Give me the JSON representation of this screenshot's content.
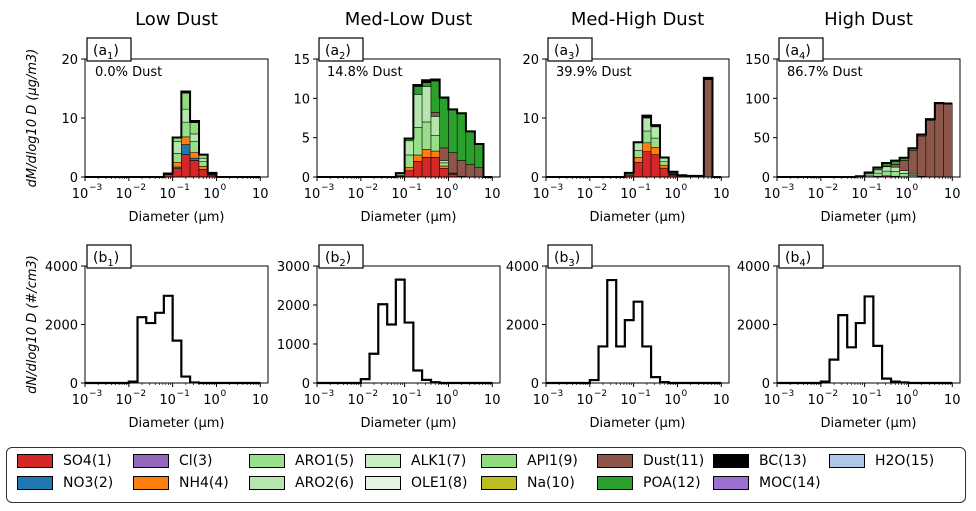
{
  "chart_data": [
    {
      "panel": "a1",
      "type": "stacked-histogram",
      "column_title": "Low Dust",
      "label": "(a",
      "sub": "1",
      "annotation": "0.0% Dust",
      "ylabel": "dM/dlog10 D (μg/m3)",
      "xlabel": "Diameter (μm)",
      "xscale": "log",
      "xlim": [
        0.001,
        15
      ],
      "ylim": [
        0,
        20
      ],
      "yticks": [
        "0",
        "10",
        "20"
      ],
      "bin_edges": [
        0.001,
        0.0016,
        0.0025,
        0.004,
        0.0063,
        0.01,
        0.0158,
        0.025,
        0.04,
        0.063,
        0.1,
        0.158,
        0.25,
        0.4,
        0.63,
        1.0,
        1.58,
        2.5,
        4.0,
        6.3,
        10.0
      ],
      "series": [
        {
          "name": "SO4(1)",
          "values": [
            0,
            0,
            0,
            0,
            0,
            0,
            0,
            0,
            0,
            0.4,
            1.4,
            3.8,
            2.8,
            1.3,
            0.3,
            0,
            0,
            0,
            0,
            0
          ]
        },
        {
          "name": "NO3(2)",
          "values": [
            0,
            0,
            0,
            0,
            0,
            0,
            0,
            0,
            0,
            0,
            0.3,
            1.7,
            0.4,
            0,
            0,
            0,
            0,
            0,
            0,
            0
          ]
        },
        {
          "name": "NH4(4)",
          "values": [
            0,
            0,
            0,
            0,
            0,
            0,
            0,
            0,
            0,
            0.2,
            0.8,
            1.3,
            1.0,
            0.5,
            0.1,
            0,
            0,
            0,
            0,
            0
          ]
        },
        {
          "name": "ARO1(5)",
          "values": [
            0,
            0,
            0,
            0,
            0,
            0,
            0,
            0,
            0,
            0,
            1.5,
            2.5,
            1.8,
            0.8,
            0.1,
            0,
            0,
            0,
            0,
            0
          ]
        },
        {
          "name": "ARO2(6)",
          "values": [
            0,
            0,
            0,
            0,
            0,
            0,
            0,
            0,
            0,
            0,
            2.0,
            2.2,
            1.3,
            0.5,
            0.1,
            0,
            0,
            0,
            0,
            0
          ]
        },
        {
          "name": "API1(9)",
          "values": [
            0,
            0,
            0,
            0,
            0,
            0,
            0,
            0,
            0,
            0,
            0.6,
            2.7,
            1.9,
            0.6,
            0.1,
            0,
            0,
            0,
            0,
            0
          ]
        },
        {
          "name": "BC(13)",
          "values": [
            0,
            0,
            0,
            0,
            0,
            0,
            0,
            0,
            0,
            0,
            0.1,
            0.3,
            0.3,
            0.1,
            0,
            0,
            0,
            0,
            0,
            0
          ]
        }
      ]
    },
    {
      "panel": "a2",
      "type": "stacked-histogram",
      "column_title": "Med-Low Dust",
      "label": "(a",
      "sub": "2",
      "annotation": "14.8% Dust",
      "ylabel": "",
      "xlabel": "Diameter (μm)",
      "xscale": "log",
      "xlim": [
        0.001,
        15
      ],
      "ylim": [
        0,
        15
      ],
      "yticks": [
        "0",
        "5",
        "10",
        "15"
      ],
      "bin_edges": [
        0.001,
        0.0016,
        0.0025,
        0.004,
        0.0063,
        0.01,
        0.0158,
        0.025,
        0.04,
        0.063,
        0.1,
        0.158,
        0.25,
        0.4,
        0.63,
        1.0,
        1.58,
        2.5,
        4.0,
        6.3,
        10.0
      ],
      "series": [
        {
          "name": "SO4(1)",
          "values": [
            0,
            0,
            0,
            0,
            0,
            0,
            0,
            0,
            0,
            0.1,
            0.8,
            2.0,
            2.5,
            2.5,
            1.1,
            0.3,
            0.1,
            0,
            0,
            0
          ]
        },
        {
          "name": "NH4(4)",
          "values": [
            0,
            0,
            0,
            0,
            0,
            0,
            0,
            0,
            0,
            0.1,
            0.4,
            0.8,
            1.0,
            0.8,
            0.3,
            0.1,
            0,
            0,
            0,
            0
          ]
        },
        {
          "name": "ARO1(5)",
          "values": [
            0,
            0,
            0,
            0,
            0,
            0,
            0,
            0,
            0,
            0.2,
            1.6,
            3.5,
            3.5,
            2.0,
            0.4,
            0.1,
            0,
            0,
            0,
            0
          ]
        },
        {
          "name": "ARO2(6)",
          "values": [
            0,
            0,
            0,
            0,
            0,
            0,
            0,
            0,
            0,
            0.1,
            1.8,
            4.2,
            4.5,
            2.4,
            0.3,
            0,
            0,
            0,
            0,
            0
          ]
        },
        {
          "name": "Dust(11)",
          "values": [
            0,
            0,
            0,
            0,
            0,
            0,
            0,
            0,
            0,
            0,
            0,
            0,
            0,
            0.5,
            1.6,
            2.6,
            2.0,
            1.6,
            1.2,
            0
          ]
        },
        {
          "name": "POA(12)",
          "values": [
            0,
            0,
            0,
            0,
            0,
            0,
            0,
            0,
            0,
            0,
            0.2,
            1.0,
            0.5,
            4.0,
            6.3,
            5.5,
            6.0,
            4.2,
            3.0,
            0
          ]
        },
        {
          "name": "BC(13)",
          "values": [
            0,
            0,
            0,
            0,
            0,
            0,
            0,
            0,
            0,
            0,
            0.1,
            0.2,
            0.3,
            0.2,
            0.1,
            0,
            0,
            0,
            0,
            0
          ]
        }
      ]
    },
    {
      "panel": "a3",
      "type": "stacked-histogram",
      "column_title": "Med-High Dust",
      "label": "(a",
      "sub": "3",
      "annotation": "39.9% Dust",
      "ylabel": "",
      "xlabel": "Diameter (μm)",
      "xscale": "log",
      "xlim": [
        0.001,
        15
      ],
      "ylim": [
        0,
        20
      ],
      "yticks": [
        "0",
        "10",
        "20"
      ],
      "bin_edges": [
        0.001,
        0.0016,
        0.0025,
        0.004,
        0.0063,
        0.01,
        0.0158,
        0.025,
        0.04,
        0.063,
        0.1,
        0.158,
        0.25,
        0.4,
        0.63,
        1.0,
        1.58,
        2.5,
        4.0,
        6.3,
        10.0
      ],
      "series": [
        {
          "name": "SO4(1)",
          "values": [
            0,
            0,
            0,
            0,
            0,
            0,
            0,
            0,
            0,
            0.3,
            2.5,
            4.3,
            3.8,
            1.5,
            0.3,
            0,
            0,
            0,
            0,
            0
          ]
        },
        {
          "name": "NH4(4)",
          "values": [
            0,
            0,
            0,
            0,
            0,
            0,
            0,
            0,
            0,
            0.1,
            0.8,
            1.5,
            1.2,
            0.5,
            0.1,
            0,
            0,
            0,
            0,
            0
          ]
        },
        {
          "name": "ARO1(5)",
          "values": [
            0,
            0,
            0,
            0,
            0,
            0,
            0,
            0,
            0,
            0.2,
            1.2,
            2.0,
            1.6,
            0.6,
            0.1,
            0,
            0,
            0,
            0,
            0
          ]
        },
        {
          "name": "ARO2(6)",
          "values": [
            0,
            0,
            0,
            0,
            0,
            0,
            0,
            0,
            0,
            0.1,
            1.3,
            2.2,
            1.9,
            0.6,
            0.1,
            0,
            0,
            0,
            0,
            0
          ]
        },
        {
          "name": "Dust(11)",
          "values": [
            0,
            0,
            0,
            0,
            0,
            0,
            0,
            0,
            0,
            0,
            0,
            0,
            0,
            0,
            0.2,
            0.2,
            0.2,
            0.2,
            16.5,
            0
          ]
        },
        {
          "name": "POA(12)",
          "values": [
            0,
            0,
            0,
            0,
            0,
            0,
            0,
            0,
            0,
            0,
            0,
            0,
            0,
            0,
            0.1,
            0.1,
            0,
            0,
            0,
            0
          ]
        },
        {
          "name": "BC(13)",
          "values": [
            0,
            0,
            0,
            0,
            0,
            0,
            0,
            0,
            0,
            0,
            0.1,
            0.4,
            0.3,
            0.1,
            0,
            0,
            0,
            0,
            0.3,
            0
          ]
        }
      ]
    },
    {
      "panel": "a4",
      "type": "stacked-histogram",
      "column_title": "High Dust",
      "label": "(a",
      "sub": "4",
      "annotation": "86.7% Dust",
      "ylabel": "",
      "xlabel": "Diameter (μm)",
      "xscale": "log",
      "xlim": [
        0.001,
        15
      ],
      "ylim": [
        0,
        150
      ],
      "yticks": [
        "0",
        "50",
        "100",
        "150"
      ],
      "bin_edges": [
        0.001,
        0.0016,
        0.0025,
        0.004,
        0.0063,
        0.01,
        0.0158,
        0.025,
        0.04,
        0.063,
        0.1,
        0.158,
        0.25,
        0.4,
        0.63,
        1.0,
        1.58,
        2.5,
        4.0,
        6.3,
        10.0
      ],
      "series": [
        {
          "name": "SO4(1)",
          "values": [
            0,
            0,
            0,
            0,
            0,
            0,
            0,
            0,
            0,
            0,
            0.5,
            1.0,
            1.5,
            1.0,
            0.5,
            0.2,
            0,
            0,
            0,
            0
          ]
        },
        {
          "name": "ARO1(5)",
          "values": [
            0,
            0,
            0,
            0,
            0,
            0,
            0,
            0,
            0,
            0.5,
            2.0,
            4.0,
            6.0,
            6.0,
            4.0,
            2.0,
            0.5,
            0,
            0,
            0
          ]
        },
        {
          "name": "ARO2(6)",
          "values": [
            0,
            0,
            0,
            0,
            0,
            0,
            0,
            0,
            0,
            0.5,
            2.0,
            4.0,
            5.5,
            5.5,
            3.5,
            1.5,
            0.5,
            0,
            0,
            0
          ]
        },
        {
          "name": "Dust(11)",
          "values": [
            0,
            0,
            0,
            0,
            0,
            0,
            0,
            0,
            0,
            0,
            0,
            0,
            1.0,
            3.5,
            13.0,
            30.0,
            51.0,
            72.0,
            93.0,
            93.0
          ]
        },
        {
          "name": "POA(12)",
          "values": [
            0,
            0,
            0,
            0,
            0,
            0,
            0,
            0,
            0,
            0,
            1.0,
            2.5,
            3.0,
            4.0,
            3.0,
            2.5,
            2.0,
            1.5,
            1.0,
            0.5
          ]
        },
        {
          "name": "BC(13)",
          "values": [
            0,
            0,
            0,
            0,
            0,
            0,
            0,
            0,
            0,
            0,
            0.2,
            0.5,
            0.8,
            0.8,
            0.5,
            0.3,
            0.1,
            0,
            0,
            0
          ]
        }
      ]
    },
    {
      "panel": "b1",
      "type": "step-line",
      "label": "(b",
      "sub": "1",
      "ylabel": "dN/dlog10 D (#/cm3)",
      "xlabel": "Diameter (μm)",
      "xscale": "log",
      "xlim": [
        0.001,
        15
      ],
      "ylim": [
        0,
        4000
      ],
      "yticks": [
        "0",
        "2000",
        "4000"
      ],
      "bin_edges": [
        0.001,
        0.0016,
        0.0025,
        0.004,
        0.0063,
        0.01,
        0.0158,
        0.025,
        0.04,
        0.063,
        0.1,
        0.158,
        0.25,
        0.4,
        0.63,
        1.0,
        1.58,
        2.5,
        4.0,
        6.3,
        10.0
      ],
      "values": [
        0,
        0,
        0,
        0,
        0,
        50,
        2250,
        2050,
        2400,
        2980,
        1450,
        220,
        20,
        0,
        0,
        0,
        0,
        0,
        0,
        0
      ]
    },
    {
      "panel": "b2",
      "type": "step-line",
      "label": "(b",
      "sub": "2",
      "ylabel": "",
      "xlabel": "Diameter (μm)",
      "xscale": "log",
      "xlim": [
        0.001,
        15
      ],
      "ylim": [
        0,
        3000
      ],
      "yticks": [
        "0",
        "1000",
        "2000",
        "3000"
      ],
      "bin_edges": [
        0.001,
        0.0016,
        0.0025,
        0.004,
        0.0063,
        0.01,
        0.0158,
        0.025,
        0.04,
        0.063,
        0.1,
        0.158,
        0.25,
        0.4,
        0.63,
        1.0,
        1.58,
        2.5,
        4.0,
        6.3,
        10.0
      ],
      "values": [
        0,
        0,
        0,
        0,
        0,
        100,
        750,
        2020,
        1500,
        2650,
        1550,
        320,
        80,
        20,
        0,
        0,
        0,
        0,
        0,
        0
      ]
    },
    {
      "panel": "b3",
      "type": "step-line",
      "label": "(b",
      "sub": "3",
      "ylabel": "",
      "xlabel": "Diameter (μm)",
      "xscale": "log",
      "xlim": [
        0.001,
        15
      ],
      "ylim": [
        0,
        4000
      ],
      "yticks": [
        "0",
        "2000",
        "4000"
      ],
      "bin_edges": [
        0.001,
        0.0016,
        0.0025,
        0.004,
        0.0063,
        0.01,
        0.0158,
        0.025,
        0.04,
        0.063,
        0.1,
        0.158,
        0.25,
        0.4,
        0.63,
        1.0,
        1.58,
        2.5,
        4.0,
        6.3,
        10.0
      ],
      "values": [
        0,
        0,
        0,
        0,
        0,
        100,
        1250,
        3520,
        1250,
        2150,
        2780,
        1250,
        200,
        30,
        0,
        0,
        0,
        0,
        0,
        0
      ]
    },
    {
      "panel": "b4",
      "type": "step-line",
      "label": "(b",
      "sub": "4",
      "ylabel": "",
      "xlabel": "Diameter (μm)",
      "xscale": "log",
      "xlim": [
        0.001,
        15
      ],
      "ylim": [
        0,
        4000
      ],
      "yticks": [
        "0",
        "2000",
        "4000"
      ],
      "bin_edges": [
        0.001,
        0.0016,
        0.0025,
        0.004,
        0.0063,
        0.01,
        0.0158,
        0.025,
        0.04,
        0.063,
        0.1,
        0.158,
        0.25,
        0.4,
        0.63,
        1.0,
        1.58,
        2.5,
        4.0,
        6.3,
        10.0
      ],
      "values": [
        0,
        0,
        0,
        0,
        0,
        50,
        800,
        2320,
        1220,
        2050,
        2960,
        1270,
        150,
        50,
        20,
        0,
        0,
        0,
        0,
        0
      ]
    }
  ],
  "xticks": [
    "10",
    "10",
    "10",
    "10",
    "10"
  ],
  "xtick_exponents": [
    "−3",
    "−2",
    "−1",
    "0",
    ""
  ],
  "legend": [
    {
      "label": "SO4(1)",
      "color": "#d62728"
    },
    {
      "label": "NO3(2)",
      "color": "#1f77b4"
    },
    {
      "label": "Cl(3)",
      "color": "#9467bd"
    },
    {
      "label": "NH4(4)",
      "color": "#ff7f0e"
    },
    {
      "label": "ARO1(5)",
      "color": "#98df8a"
    },
    {
      "label": "ARO2(6)",
      "color": "#b5e6ad"
    },
    {
      "label": "ALK1(7)",
      "color": "#c7efc1"
    },
    {
      "label": "OLE1(8)",
      "color": "#e2f6df"
    },
    {
      "label": "API1(9)",
      "color": "#8edc7e"
    },
    {
      "label": "Na(10)",
      "color": "#bcbd22"
    },
    {
      "label": "Dust(11)",
      "color": "#8c564b"
    },
    {
      "label": "POA(12)",
      "color": "#2ca02c"
    },
    {
      "label": "BC(13)",
      "color": "#000000"
    },
    {
      "label": "MOC(14)",
      "color": "#9a6fcf"
    },
    {
      "label": "H2O(15)",
      "color": "#aec7e8"
    }
  ]
}
